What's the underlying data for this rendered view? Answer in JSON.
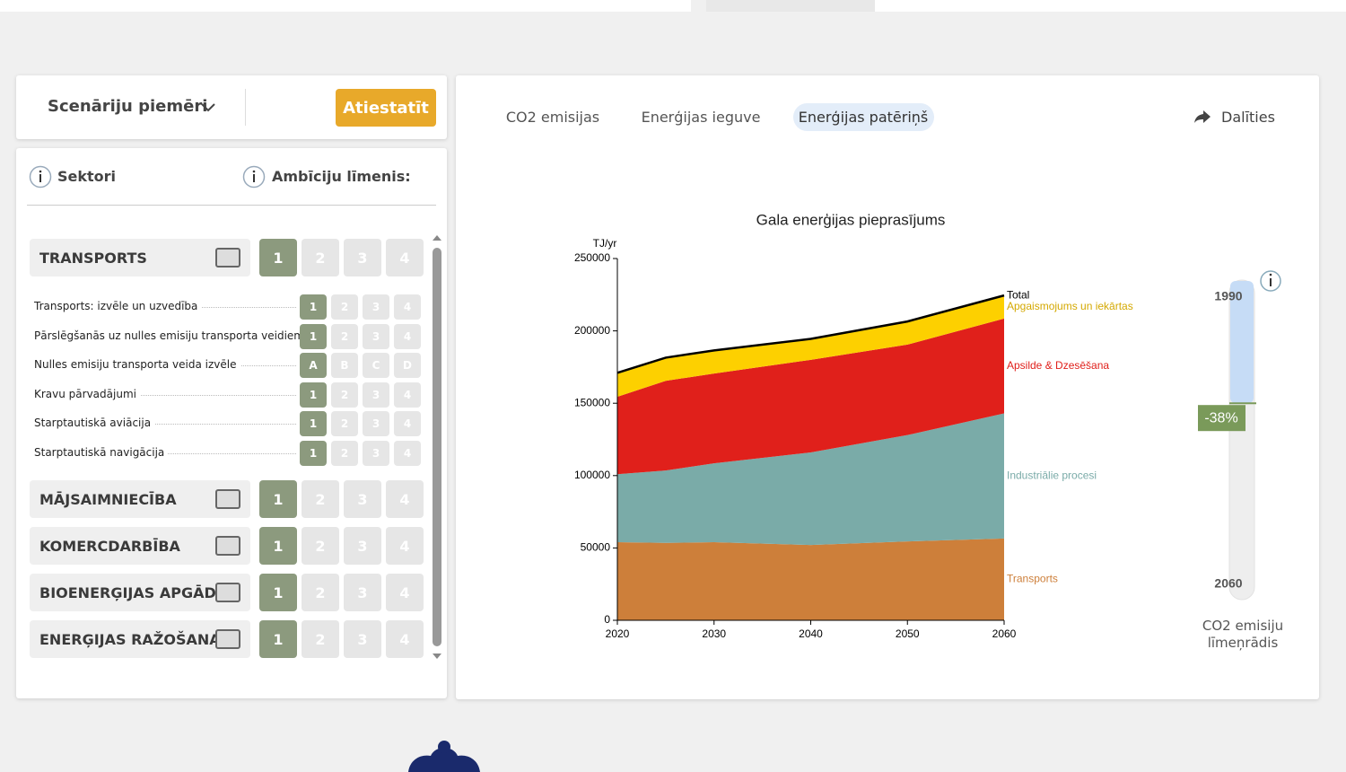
{
  "header": {
    "scenario_label": "Scenāriju piemēri",
    "reset_button": "Atiestatīt"
  },
  "panel": {
    "sectors_label": "Sektori",
    "ambition_label": "Ambīciju līmenis:",
    "sectors": [
      {
        "name": "TRANSPORTS",
        "levels": [
          "1",
          "2",
          "3",
          "4"
        ],
        "selected": 0,
        "subitems": [
          {
            "name": "Transports: izvēle un uzvedība",
            "levels": [
              "1",
              "2",
              "3",
              "4"
            ],
            "selected": 0
          },
          {
            "name": "Pārslēgšanās uz nulles emisiju transporta veidiem",
            "levels": [
              "1",
              "2",
              "3",
              "4"
            ],
            "selected": 0
          },
          {
            "name": "Nulles emisiju transporta veida izvēle",
            "levels": [
              "A",
              "B",
              "C",
              "D"
            ],
            "selected": 0
          },
          {
            "name": "Kravu pārvadājumi",
            "levels": [
              "1",
              "2",
              "3",
              "4"
            ],
            "selected": 0
          },
          {
            "name": "Starptautiskā aviācija",
            "levels": [
              "1",
              "2",
              "3",
              "4"
            ],
            "selected": 0
          },
          {
            "name": "Starptautiskā navigācija",
            "levels": [
              "1",
              "2",
              "3",
              "4"
            ],
            "selected": 0
          }
        ]
      },
      {
        "name": "MĀJSAIMNIECĪBA",
        "levels": [
          "1",
          "2",
          "3",
          "4"
        ],
        "selected": 0
      },
      {
        "name": "KOMERCDARBĪBA",
        "levels": [
          "1",
          "2",
          "3",
          "4"
        ],
        "selected": 0
      },
      {
        "name": "BIOENERĢIJAS APGĀDE",
        "levels": [
          "1",
          "2",
          "3",
          "4"
        ],
        "selected": 0
      },
      {
        "name": "ENERĢIJAS RAŽOŠANA",
        "levels": [
          "1",
          "2",
          "3",
          "4"
        ],
        "selected": 0
      }
    ]
  },
  "tabs": {
    "items": [
      "CO2 emisijas",
      "Enerģijas ieguve",
      "Enerģijas patēriņš"
    ],
    "active": 2,
    "share": "Dalīties"
  },
  "chart_data": {
    "type": "area",
    "stacked": true,
    "title": "Gala enerģijas pieprasījums",
    "y_label": "TJ/yr",
    "x": [
      2020,
      2025,
      2030,
      2040,
      2050,
      2060
    ],
    "xlim": [
      2020,
      2060
    ],
    "xticks": [
      2020,
      2030,
      2040,
      2050,
      2060
    ],
    "ylim": [
      0,
      250000
    ],
    "yticks": [
      0,
      50000,
      100000,
      150000,
      200000,
      250000
    ],
    "series": [
      {
        "name": "Transports",
        "color": "#cd7f3a",
        "values": [
          54000,
          53500,
          54000,
          52000,
          54500,
          56500
        ]
      },
      {
        "name": "Industriālie procesi",
        "color": "#7aaba8",
        "values": [
          47000,
          50000,
          54500,
          64000,
          73500,
          86500
        ]
      },
      {
        "name": "Apsilde & Dzesēšana",
        "color": "#e0201b",
        "values": [
          53500,
          62000,
          62000,
          64000,
          62500,
          65500
        ]
      },
      {
        "name": "Apgaismojums un iekārtas",
        "color": "#fdd000",
        "values": [
          16500,
          16000,
          16000,
          14500,
          16000,
          16000
        ]
      }
    ],
    "total": {
      "name": "Total",
      "color": "#000000",
      "values": [
        171000,
        181500,
        186500,
        194500,
        206500,
        224500
      ]
    }
  },
  "indicator": {
    "start_label": "1990",
    "end_label": "2060",
    "value": -38,
    "value_label": "-38%",
    "caption": "CO2 emisiju līmeņrādis"
  }
}
